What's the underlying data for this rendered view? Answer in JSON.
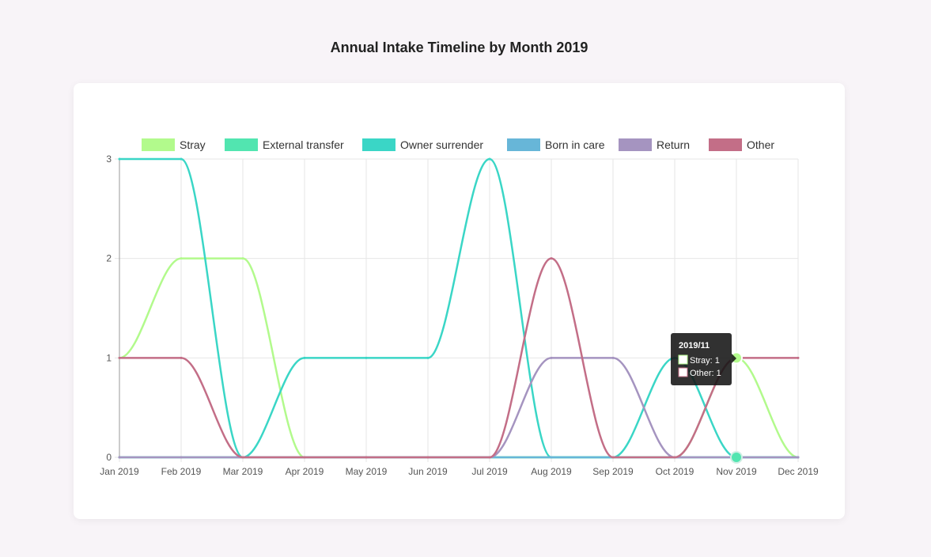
{
  "page": {
    "title": "Annual Intake Timeline by Month 2019"
  },
  "chart_data": {
    "type": "line",
    "title": "Annual Intake Timeline by Month 2019",
    "categories": [
      "Jan 2019",
      "Feb 2019",
      "Mar 2019",
      "Apr 2019",
      "May 2019",
      "Jun 2019",
      "Jul 2019",
      "Aug 2019",
      "Sep 2019",
      "Oct 2019",
      "Nov 2019",
      "Dec 2019"
    ],
    "ylim": [
      0,
      3
    ],
    "yticks": [
      0,
      1,
      2,
      3
    ],
    "grid": true,
    "legend_position": "top",
    "series": [
      {
        "name": "Stray",
        "color": "#b2fa8c",
        "values": [
          1,
          2,
          2,
          0,
          0,
          0,
          0,
          0,
          0,
          0,
          1,
          0
        ]
      },
      {
        "name": "External transfer",
        "color": "#52e5b0",
        "values": [
          0,
          0,
          0,
          0,
          0,
          0,
          0,
          0,
          0,
          0,
          0,
          0
        ]
      },
      {
        "name": "Owner surrender",
        "color": "#3ad6c6",
        "values": [
          3,
          3,
          0,
          1,
          1,
          1,
          3,
          0,
          0,
          1,
          0,
          0
        ]
      },
      {
        "name": "Born in care",
        "color": "#67b6d8",
        "values": [
          0,
          0,
          0,
          0,
          0,
          0,
          0,
          0,
          0,
          0,
          0,
          0
        ]
      },
      {
        "name": "Return",
        "color": "#a594c0",
        "values": [
          0,
          0,
          0,
          0,
          0,
          0,
          0,
          1,
          1,
          0,
          0,
          0
        ]
      },
      {
        "name": "Other",
        "color": "#c36e87",
        "values": [
          1,
          1,
          0,
          0,
          0,
          0,
          0,
          2,
          0,
          0,
          1,
          1
        ]
      }
    ],
    "tooltip": {
      "title": "2019/11",
      "category_index": 10,
      "items": [
        {
          "label": "Stray: 1",
          "color": "#b2fa8c"
        },
        {
          "label": "Other: 1",
          "color": "#c36e87"
        }
      ]
    }
  }
}
